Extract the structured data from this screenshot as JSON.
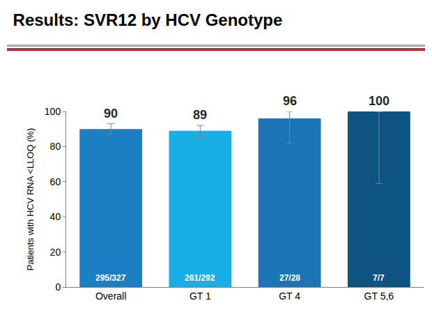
{
  "chart_data": {
    "type": "bar",
    "title": "Results: SVR12 by HCV Genotype",
    "y_label": "Patients with HCV RNA <LLOQ (%)",
    "categories": [
      "Overall",
      "GT 1",
      "GT 4",
      "GT 5,6"
    ],
    "values": [
      90,
      89,
      96,
      100
    ],
    "ci_low": [
      87,
      85.5,
      82,
      59
    ],
    "ci_high": [
      93,
      92,
      100,
      100
    ],
    "counts": [
      "295/327",
      "261/292",
      "27/28",
      "7/7"
    ],
    "colors": [
      "#1b7fc4",
      "#1aaee6",
      "#1a74b6",
      "#0d5482"
    ],
    "ylim": [
      0,
      100
    ],
    "yticks": [
      0,
      20,
      40,
      60,
      80,
      100
    ],
    "grid": false,
    "data_labels": true
  }
}
